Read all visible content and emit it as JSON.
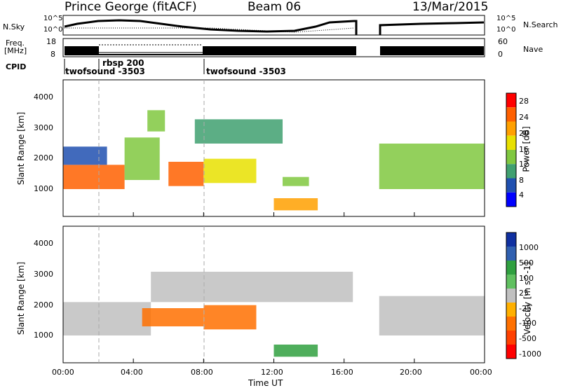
{
  "header": {
    "station": "Prince George (fitACF)",
    "beam": "Beam 06",
    "date": "13/Mar/2015"
  },
  "noise_panel": {
    "left_label": "N.Sky",
    "right_label": "N.Search",
    "left_ticks": [
      "10^5",
      "10^0"
    ],
    "right_ticks": [
      "10^5",
      "10^0"
    ]
  },
  "freq_panel": {
    "left_label_line1": "Freq.",
    "left_label_line2": "[MHz]",
    "right_label": "Nave",
    "left_ticks": [
      "18",
      "8"
    ],
    "right_ticks": [
      "60",
      "0"
    ]
  },
  "cpid_panel": {
    "label": "CPID",
    "segments": [
      {
        "name": "twofsound -3503",
        "start_h": 0,
        "end_h": 8
      },
      {
        "name": "rbsp 200",
        "start_h": 2,
        "end_h": 8
      },
      {
        "name": "twofsound -3503",
        "start_h": 8,
        "end_h": 24
      }
    ]
  },
  "x_axis": {
    "label": "Time UT",
    "ticks": [
      "00:00",
      "04:00",
      "08:00",
      "12:00",
      "16:00",
      "20:00",
      "00:00"
    ],
    "range_h": [
      0,
      24
    ]
  },
  "power_panel": {
    "ylabel": "Slant Range [km]",
    "yticks": [
      "1000",
      "2000",
      "3000",
      "4000"
    ],
    "colorbar_label": "Power [dB]",
    "colorbar_ticks": [
      "28",
      "24",
      "20",
      "16",
      "12",
      "8",
      "4"
    ],
    "colorbar_colors": [
      "#ff0000",
      "#ff6000",
      "#ffa000",
      "#e8e000",
      "#80c840",
      "#40a070",
      "#2050b0",
      "#0000ff"
    ]
  },
  "velocity_panel": {
    "ylabel": "Slant Range [km]",
    "yticks": [
      "1000",
      "2000",
      "3000",
      "4000"
    ],
    "colorbar_label": "Velocity [m s^-1]",
    "colorbar_ticks": [
      "1000",
      "500",
      "100",
      "25",
      "-25",
      "-100",
      "-500",
      "-1000"
    ],
    "colorbar_colors": [
      "#1030a0",
      "#3060b0",
      "#30a040",
      "#60c060",
      "#c0c0c0",
      "#ffb000",
      "#ff7000",
      "#ff4000",
      "#ff0000"
    ]
  },
  "chart_data": [
    {
      "type": "heatmap",
      "title": "Power",
      "x_range": [
        0,
        24
      ],
      "y_range": [
        0,
        4500
      ],
      "regions": [
        {
          "start_h": 0.0,
          "end_h": 3.5,
          "range_km": [
            900,
            1700
          ],
          "value_db": 26
        },
        {
          "start_h": 0.0,
          "end_h": 2.5,
          "range_km": [
            1700,
            2300
          ],
          "value_db": 8
        },
        {
          "start_h": 3.5,
          "end_h": 5.5,
          "range_km": [
            1200,
            2600
          ],
          "value_db": 14
        },
        {
          "start_h": 4.8,
          "end_h": 5.8,
          "range_km": [
            2800,
            3500
          ],
          "value_db": 14
        },
        {
          "start_h": 6.0,
          "end_h": 8.0,
          "range_km": [
            1000,
            1800
          ],
          "value_db": 26
        },
        {
          "start_h": 8.0,
          "end_h": 11.0,
          "range_km": [
            1100,
            1900
          ],
          "value_db": 20
        },
        {
          "start_h": 7.5,
          "end_h": 12.5,
          "range_km": [
            2400,
            3200
          ],
          "value_db": 12
        },
        {
          "start_h": 12.5,
          "end_h": 14.0,
          "range_km": [
            1000,
            1300
          ],
          "value_db": 14
        },
        {
          "start_h": 12.0,
          "end_h": 14.5,
          "range_km": [
            200,
            600
          ],
          "value_db": 24
        },
        {
          "start_h": 18.0,
          "end_h": 24.0,
          "range_km": [
            900,
            2400
          ],
          "value_db": 16
        }
      ],
      "data_gap_h": [
        16.7,
        18.0
      ]
    },
    {
      "type": "heatmap",
      "title": "Velocity",
      "x_range": [
        0,
        24
      ],
      "y_range": [
        0,
        4500
      ],
      "regions": [
        {
          "start_h": 0.0,
          "end_h": 5.0,
          "range_km": [
            900,
            2000
          ],
          "value_ms": 0
        },
        {
          "start_h": 4.5,
          "end_h": 8.0,
          "range_km": [
            1200,
            1800
          ],
          "value_ms": -300
        },
        {
          "start_h": 8.0,
          "end_h": 11.0,
          "range_km": [
            1100,
            1900
          ],
          "value_ms": -300
        },
        {
          "start_h": 5.0,
          "end_h": 16.5,
          "range_km": [
            2000,
            3000
          ],
          "value_ms": 0
        },
        {
          "start_h": 12.0,
          "end_h": 14.5,
          "range_km": [
            200,
            600
          ],
          "value_ms": 150
        },
        {
          "start_h": 18.0,
          "end_h": 24.0,
          "range_km": [
            900,
            2200
          ],
          "value_ms": 0
        }
      ],
      "data_gap_h": [
        16.7,
        18.0
      ]
    }
  ]
}
